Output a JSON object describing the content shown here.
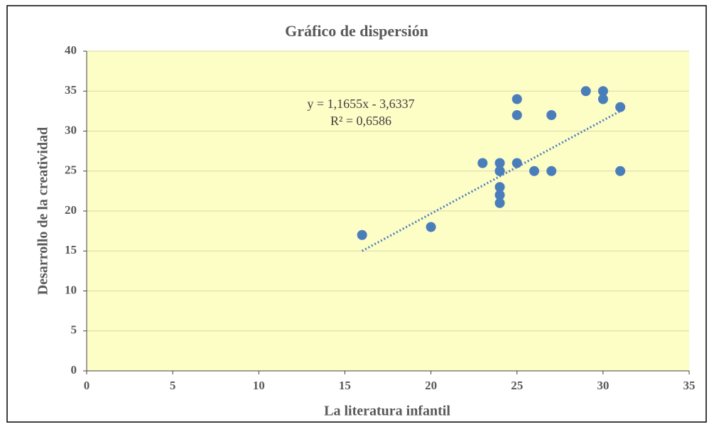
{
  "chart_data": {
    "type": "scatter",
    "title": "Gráfico de dispersión",
    "x_label": "La literatura infantil",
    "y_label": "Desarrollo de la creatividad",
    "x": [
      16,
      20,
      23,
      24,
      24,
      24,
      24,
      24,
      24,
      25,
      25,
      25,
      26,
      27,
      27,
      29,
      30,
      30,
      31,
      31
    ],
    "values": [
      17,
      18,
      26,
      26,
      25,
      23,
      22,
      21,
      25,
      34,
      32,
      26,
      25,
      32,
      25,
      35,
      35,
      34,
      33,
      25
    ],
    "color": "#4a7ebb",
    "trendline": {
      "x": [
        16,
        31
      ],
      "values": [
        15.0,
        32.5
      ],
      "equation": "y = 1,1655x - 3,6337",
      "r_squared": "R² = 0,6586"
    },
    "xlim": [
      0,
      35
    ],
    "xticks": [
      0,
      5,
      10,
      15,
      20,
      25,
      30,
      35
    ],
    "ylim": [
      0,
      40
    ],
    "yticks": [
      0,
      5,
      10,
      15,
      20,
      25,
      30,
      35,
      40
    ],
    "grid": true,
    "background": "#fdfdc6"
  }
}
